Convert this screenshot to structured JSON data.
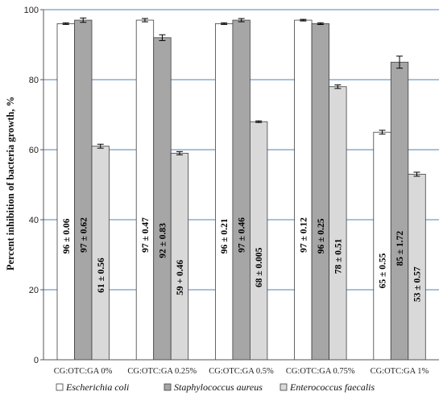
{
  "chart_data": {
    "type": "bar",
    "ylabel": "Percent inhibition of bacteria growth, %",
    "ylim": [
      0,
      100
    ],
    "yticks": [
      0,
      20,
      40,
      60,
      80,
      100
    ],
    "grid": true,
    "legend_position": "bottom",
    "categories": [
      "CG:OTC:GA 0%",
      "CG:OTC:GA 0.25%",
      "CG:OTC:GA 0.5%",
      "CG:OTC:GA 0.75%",
      "CG:OTC:GA 1%"
    ],
    "series": [
      {
        "name": "Escherichia coli",
        "color": "#ffffff",
        "values": [
          96,
          97,
          96,
          97,
          65
        ],
        "errors": [
          0.06,
          0.47,
          0.21,
          0.12,
          0.55
        ],
        "labels": [
          "96 ± 0.06",
          "97 ± 0.47",
          "96 ± 0.21",
          "97 ± 0.12",
          "65 ± 0.55"
        ]
      },
      {
        "name": "Staphylococcus aureus",
        "color": "#a6a6a6",
        "values": [
          97,
          92,
          97,
          96,
          85
        ],
        "errors": [
          0.62,
          0.83,
          0.46,
          0.25,
          1.72
        ],
        "labels": [
          "97 ± 0.62",
          "92 ± 0.83",
          "97 ± 0.46",
          "96 ± 0.25",
          "85 ± 1.72"
        ]
      },
      {
        "name": "Enterococcus faecalis",
        "color": "#d9d9d9",
        "values": [
          61,
          59,
          68,
          78,
          53
        ],
        "errors": [
          0.56,
          0.46,
          0.005,
          0.51,
          0.57
        ],
        "labels": [
          "61 ± 0.56",
          "59 + 0.46",
          "68 ± 0.005",
          "78 ± 0.51",
          "53 ± 0.57"
        ]
      }
    ]
  }
}
